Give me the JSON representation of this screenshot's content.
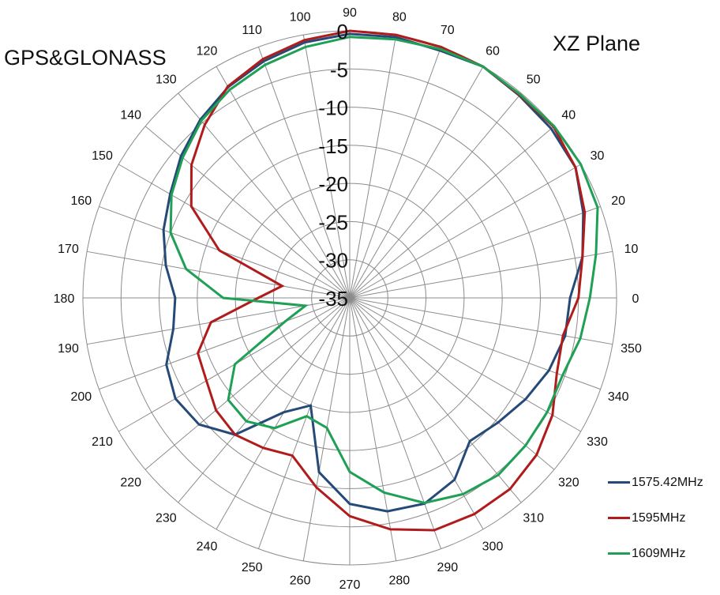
{
  "chart_data": {
    "type": "polar-line",
    "title": "GPS&GLONASS",
    "subtitle": "XZ Plane",
    "angle_unit": "degrees",
    "angles": [
      0,
      10,
      20,
      30,
      40,
      50,
      60,
      70,
      80,
      90,
      100,
      110,
      120,
      130,
      140,
      150,
      160,
      170,
      180,
      190,
      200,
      210,
      220,
      230,
      240,
      250,
      260,
      270,
      280,
      290,
      300,
      310,
      320,
      330,
      340,
      350
    ],
    "angle_tick_labels": [
      "0",
      "10",
      "20",
      "30",
      "40",
      "50",
      "60",
      "70",
      "80",
      "90",
      "100",
      "110",
      "120",
      "130",
      "140",
      "150",
      "160",
      "170",
      "180",
      "190",
      "200",
      "210",
      "220",
      "230",
      "240",
      "250",
      "260",
      "270",
      "280",
      "290",
      "300",
      "310",
      "320",
      "330",
      "340",
      "350"
    ],
    "radial_range": [
      -35,
      0
    ],
    "radial_tick_labels": [
      "0",
      "-5",
      "-10",
      "-15",
      "-20",
      "-25",
      "-30",
      "-35"
    ],
    "radial_ticks": [
      0,
      -5,
      -10,
      -15,
      -20,
      -25,
      -30,
      -35
    ],
    "grid": true,
    "legend_position": "bottom-right",
    "series": [
      {
        "name": "1575.42MHz",
        "color": "#254a78",
        "values": [
          -6.1,
          -4.0,
          -2.4,
          -0.8,
          -0.5,
          -0.4,
          0,
          -0.5,
          -0.3,
          -0.4,
          -1.0,
          -2.0,
          -3.1,
          -4.5,
          -6.1,
          -7.8,
          -9.0,
          -10.5,
          -12.1,
          -11.5,
          -9.4,
          -8.6,
          -9.2,
          -11.6,
          -17.7,
          -20.0,
          -11.8,
          -8.0,
          -6.6,
          -6.3,
          -7.5,
          -10.5,
          -9.6,
          -8.4,
          -7.2,
          -6.3
        ]
      },
      {
        "name": "1595MHz",
        "color": "#b01c1c",
        "values": [
          -5.0,
          -4.0,
          -2.2,
          -0.8,
          -0.1,
          -0.3,
          0,
          0,
          0,
          0,
          -0.7,
          -1.7,
          -3.0,
          -5.4,
          -7.9,
          -11.0,
          -16.8,
          -26.0,
          -23.0,
          -16.5,
          -13.8,
          -13.3,
          -12.1,
          -11.6,
          -12.3,
          -13.0,
          -9.8,
          -6.4,
          -4.2,
          -2.6,
          -2.3,
          -2.3,
          -3.0,
          -4.3,
          -6.1,
          -6.6
        ]
      },
      {
        "name": "1609MHz",
        "color": "#1fa055",
        "values": [
          -3.5,
          -2.2,
          -0.4,
          0,
          0,
          -0.2,
          0,
          -0.3,
          -0.6,
          -0.8,
          -1.6,
          -2.5,
          -3.5,
          -4.7,
          -6.4,
          -8.0,
          -10.0,
          -13.2,
          -18.4,
          -29.1,
          -26.0,
          -17.6,
          -14.2,
          -13.9,
          -15.3,
          -18.5,
          -17.7,
          -12.2,
          -9.1,
          -6.4,
          -5.3,
          -4.7,
          -4.9,
          -5.1,
          -5.3,
          -4.3
        ]
      }
    ]
  }
}
